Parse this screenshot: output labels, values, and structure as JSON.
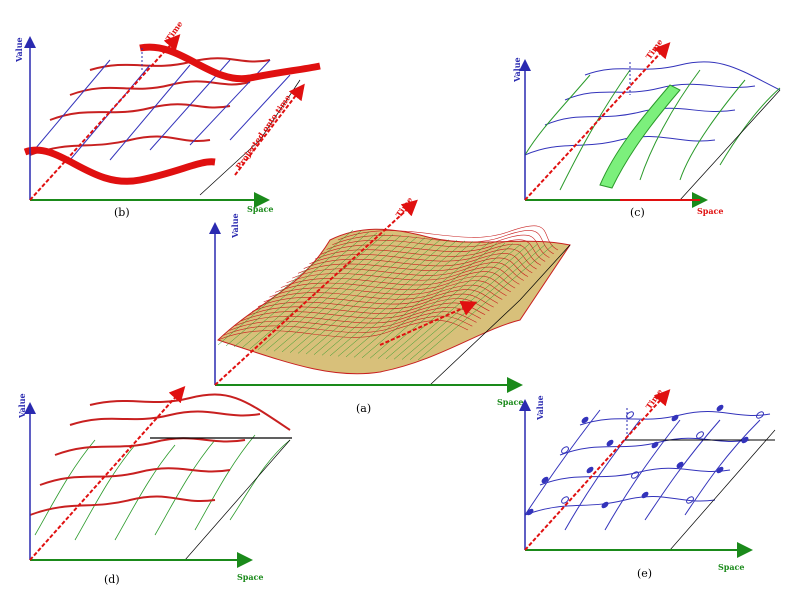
{
  "colors": {
    "value_axis": "#2a2ab0",
    "space_axis": "#1a8a1a",
    "time_axis": "#e01010",
    "surface_red": "#c82020",
    "surface_green": "#2a9a2a",
    "surface_blue": "#3333bb",
    "highlight_green": "#7cf07c"
  },
  "panels": {
    "a": {
      "caption": "(a)",
      "value_label": "Value",
      "space_label": "Space",
      "time_label": "Time"
    },
    "b": {
      "caption": "(b)",
      "value_label": "Value",
      "space_label": "Space",
      "time_label": "Time",
      "extra_label": "Projected onto time"
    },
    "c": {
      "caption": "(c)",
      "value_label": "Value",
      "space_label": "Space",
      "time_label": "Time"
    },
    "d": {
      "caption": "(d)",
      "space_label": "Space",
      "value_label": "Value"
    },
    "e": {
      "caption": "(e)",
      "value_label": "Value",
      "space_label": "Space",
      "time_label": "Time"
    }
  }
}
